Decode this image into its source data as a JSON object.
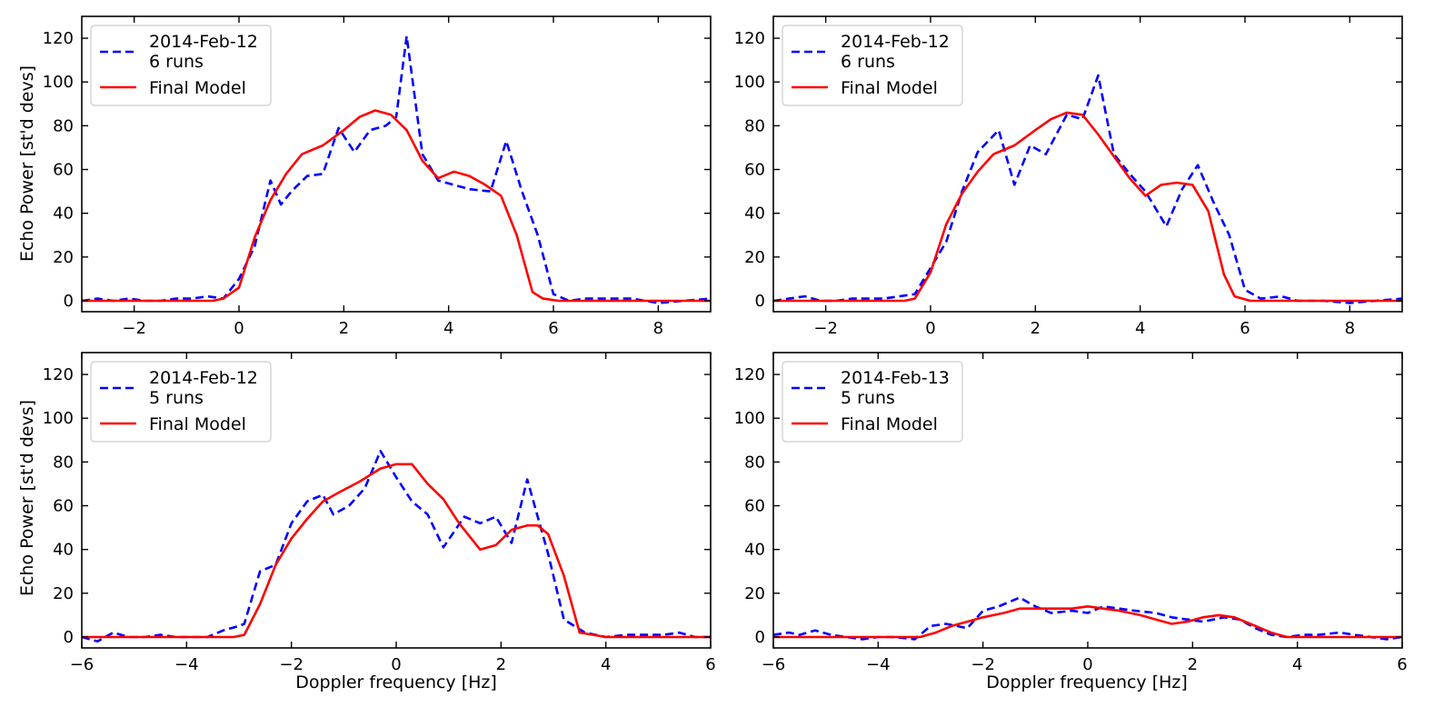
{
  "figure": {
    "ylabel": "Echo Power [st'd devs]",
    "xlabel": "Doppler frequency [Hz]"
  },
  "chart_data": [
    {
      "type": "line",
      "position": "top-left",
      "xlim": [
        -3,
        9
      ],
      "ylim": [
        -5,
        130
      ],
      "xticks": [
        -2,
        0,
        2,
        4,
        6,
        8
      ],
      "xtick_labels": [
        "−2",
        "0",
        "2",
        "4",
        "6",
        "8"
      ],
      "yticks": [
        0,
        20,
        40,
        60,
        80,
        100,
        120
      ],
      "ylabel": "Echo Power [st'd devs]",
      "xlabel": "",
      "legend": {
        "placement": "top-left",
        "observed_label": [
          "2014-Feb-12",
          "6 runs"
        ],
        "model_label": "Final Model"
      },
      "series": [
        {
          "name": "2014-Feb-12 6 runs",
          "style": "dashed",
          "color": "#0000ff",
          "x": [
            -3.0,
            -2.7,
            -2.4,
            -2.1,
            -1.8,
            -1.5,
            -1.2,
            -0.9,
            -0.6,
            -0.3,
            0.0,
            0.3,
            0.6,
            0.8,
            1.0,
            1.3,
            1.6,
            1.9,
            2.2,
            2.5,
            2.8,
            3.0,
            3.2,
            3.5,
            3.8,
            4.1,
            4.4,
            4.8,
            5.1,
            5.4,
            5.7,
            6.0,
            6.3,
            6.6,
            7.0,
            7.5,
            8.0,
            8.5,
            9.0
          ],
          "y": [
            0,
            1,
            0,
            1,
            0,
            0,
            1,
            1,
            2,
            1,
            10,
            25,
            55,
            44,
            50,
            57,
            58,
            79,
            68,
            78,
            80,
            84,
            121,
            67,
            55,
            53,
            51,
            50,
            73,
            50,
            30,
            3,
            0,
            1,
            1,
            1,
            -1,
            0,
            1
          ]
        },
        {
          "name": "Final Model",
          "style": "solid",
          "color": "#ff0000",
          "x": [
            -3.0,
            -2.0,
            -1.0,
            -0.5,
            -0.3,
            0.0,
            0.3,
            0.6,
            0.9,
            1.2,
            1.6,
            2.0,
            2.3,
            2.6,
            2.9,
            3.2,
            3.5,
            3.8,
            4.1,
            4.4,
            4.7,
            5.0,
            5.3,
            5.6,
            5.8,
            6.1,
            7.0,
            8.0,
            9.0
          ],
          "y": [
            0,
            0,
            0,
            0,
            1,
            6,
            29,
            46,
            58,
            67,
            71,
            78,
            84,
            87,
            85,
            78,
            64,
            56,
            59,
            57,
            53,
            48,
            30,
            4,
            1,
            0,
            0,
            0,
            0
          ]
        }
      ]
    },
    {
      "type": "line",
      "position": "top-right",
      "xlim": [
        -3,
        9
      ],
      "ylim": [
        -5,
        130
      ],
      "xticks": [
        -2,
        0,
        2,
        4,
        6,
        8
      ],
      "xtick_labels": [
        "−2",
        "0",
        "2",
        "4",
        "6",
        "8"
      ],
      "yticks": [
        0,
        20,
        40,
        60,
        80,
        100,
        120
      ],
      "ylabel": "",
      "xlabel": "",
      "legend": {
        "placement": "top-left",
        "observed_label": [
          "2014-Feb-12",
          "6 runs"
        ],
        "model_label": "Final Model"
      },
      "series": [
        {
          "name": "2014-Feb-12 6 runs",
          "style": "dashed",
          "color": "#0000ff",
          "x": [
            -3.0,
            -2.7,
            -2.4,
            -2.1,
            -1.8,
            -1.5,
            -1.2,
            -0.9,
            -0.6,
            -0.3,
            0.0,
            0.3,
            0.6,
            0.9,
            1.3,
            1.6,
            1.9,
            2.2,
            2.6,
            2.9,
            3.2,
            3.5,
            3.8,
            4.1,
            4.5,
            4.8,
            5.1,
            5.4,
            5.7,
            6.0,
            6.3,
            6.7,
            7.0,
            7.5,
            8.0,
            8.5,
            9.0
          ],
          "y": [
            0,
            1,
            2,
            0,
            0,
            1,
            1,
            1,
            2,
            3,
            15,
            27,
            50,
            68,
            78,
            53,
            71,
            67,
            85,
            83,
            103,
            67,
            58,
            50,
            34,
            51,
            62,
            45,
            30,
            5,
            1,
            2,
            0,
            0,
            -1,
            0,
            1
          ]
        },
        {
          "name": "Final Model",
          "style": "solid",
          "color": "#ff0000",
          "x": [
            -3.0,
            -2.0,
            -1.0,
            -0.5,
            -0.3,
            0.0,
            0.3,
            0.6,
            0.9,
            1.2,
            1.6,
            2.0,
            2.3,
            2.6,
            2.9,
            3.2,
            3.5,
            3.8,
            4.1,
            4.4,
            4.7,
            5.0,
            5.3,
            5.6,
            5.8,
            6.1,
            7.0,
            8.0,
            9.0
          ],
          "y": [
            0,
            0,
            0,
            0,
            1,
            13,
            35,
            49,
            59,
            67,
            71,
            78,
            83,
            86,
            85,
            76,
            66,
            56,
            48,
            53,
            54,
            53,
            41,
            12,
            2,
            0,
            0,
            0,
            0
          ]
        }
      ]
    },
    {
      "type": "line",
      "position": "bottom-left",
      "xlim": [
        -6,
        6
      ],
      "ylim": [
        -5,
        130
      ],
      "xticks": [
        -6,
        -4,
        -2,
        0,
        2,
        4,
        6
      ],
      "xtick_labels": [
        "−6",
        "−4",
        "−2",
        "0",
        "2",
        "4",
        "6"
      ],
      "yticks": [
        0,
        20,
        40,
        60,
        80,
        100,
        120
      ],
      "ylabel": "Echo Power [st'd devs]",
      "xlabel": "Doppler frequency [Hz]",
      "legend": {
        "placement": "top-left",
        "observed_label": [
          "2014-Feb-12",
          "5 runs"
        ],
        "model_label": "Final Model"
      },
      "series": [
        {
          "name": "2014-Feb-12 5 runs",
          "style": "dashed",
          "color": "#0000ff",
          "x": [
            -6.0,
            -5.7,
            -5.4,
            -5.1,
            -4.8,
            -4.5,
            -4.2,
            -3.9,
            -3.6,
            -3.3,
            -3.0,
            -2.9,
            -2.6,
            -2.3,
            -2.0,
            -1.7,
            -1.4,
            -1.2,
            -0.9,
            -0.6,
            -0.3,
            0.0,
            0.3,
            0.6,
            0.9,
            1.3,
            1.6,
            1.9,
            2.2,
            2.5,
            2.9,
            3.2,
            3.6,
            4.0,
            4.4,
            4.8,
            5.1,
            5.4,
            5.7,
            6.0
          ],
          "y": [
            0,
            -2,
            2,
            0,
            0,
            1,
            0,
            0,
            0,
            3,
            5,
            6,
            30,
            33,
            52,
            62,
            65,
            56,
            60,
            68,
            85,
            73,
            62,
            56,
            41,
            55,
            52,
            55,
            43,
            72,
            38,
            8,
            2,
            0,
            1,
            1,
            1,
            2,
            0,
            0
          ]
        },
        {
          "name": "Final Model",
          "style": "solid",
          "color": "#ff0000",
          "x": [
            -6.0,
            -5.0,
            -4.0,
            -3.5,
            -3.1,
            -2.9,
            -2.6,
            -2.3,
            -2.0,
            -1.7,
            -1.4,
            -1.1,
            -0.7,
            -0.3,
            0.0,
            0.3,
            0.6,
            0.9,
            1.2,
            1.6,
            1.9,
            2.2,
            2.5,
            2.7,
            2.9,
            3.2,
            3.5,
            4.0,
            5.0,
            6.0
          ],
          "y": [
            0,
            0,
            0,
            0,
            0,
            1,
            15,
            33,
            45,
            54,
            62,
            66,
            71,
            77,
            79,
            79,
            70,
            63,
            52,
            40,
            42,
            49,
            51,
            51,
            47,
            28,
            2,
            0,
            0,
            0
          ]
        }
      ]
    },
    {
      "type": "line",
      "position": "bottom-right",
      "xlim": [
        -6,
        6
      ],
      "ylim": [
        -5,
        130
      ],
      "xticks": [
        -6,
        -4,
        -2,
        0,
        2,
        4,
        6
      ],
      "xtick_labels": [
        "−6",
        "−4",
        "−2",
        "0",
        "2",
        "4",
        "6"
      ],
      "yticks": [
        0,
        20,
        40,
        60,
        80,
        100,
        120
      ],
      "ylabel": "",
      "xlabel": "Doppler frequency [Hz]",
      "legend": {
        "placement": "top-left",
        "observed_label": [
          "2014-Feb-13",
          "5 runs"
        ],
        "model_label": "Final Model"
      },
      "series": [
        {
          "name": "2014-Feb-13 5 runs",
          "style": "dashed",
          "color": "#0000ff",
          "x": [
            -6.0,
            -5.7,
            -5.5,
            -5.2,
            -4.9,
            -4.6,
            -4.3,
            -4.0,
            -3.7,
            -3.3,
            -3.0,
            -2.7,
            -2.3,
            -2.0,
            -1.7,
            -1.3,
            -1.0,
            -0.7,
            -0.3,
            0.0,
            0.3,
            0.6,
            0.9,
            1.3,
            1.6,
            1.9,
            2.2,
            2.6,
            2.9,
            3.2,
            3.5,
            3.8,
            4.1,
            4.4,
            4.8,
            5.1,
            5.4,
            5.7,
            6.0
          ],
          "y": [
            1,
            2,
            1,
            3,
            1,
            0,
            -1,
            0,
            0,
            -1,
            5,
            6,
            4,
            12,
            14,
            18,
            14,
            11,
            12,
            11,
            14,
            13,
            12,
            11,
            9,
            8,
            7,
            9,
            8,
            4,
            1,
            0,
            1,
            1,
            2,
            1,
            0,
            -1,
            0
          ]
        },
        {
          "name": "Final Model",
          "style": "solid",
          "color": "#ff0000",
          "x": [
            -6.0,
            -5.0,
            -4.0,
            -3.5,
            -3.2,
            -2.9,
            -2.6,
            -2.3,
            -2.0,
            -1.6,
            -1.3,
            -1.0,
            -0.6,
            -0.3,
            0.0,
            0.3,
            0.6,
            1.0,
            1.3,
            1.6,
            1.9,
            2.2,
            2.5,
            2.8,
            3.1,
            3.5,
            3.8,
            4.0,
            5.0,
            6.0
          ],
          "y": [
            0,
            0,
            0,
            0,
            0,
            2,
            5,
            7,
            9,
            11,
            13,
            13,
            13,
            13,
            14,
            13,
            12,
            10,
            8,
            6,
            7,
            9,
            10,
            9,
            6,
            2,
            0,
            0,
            0,
            0
          ]
        }
      ]
    }
  ]
}
